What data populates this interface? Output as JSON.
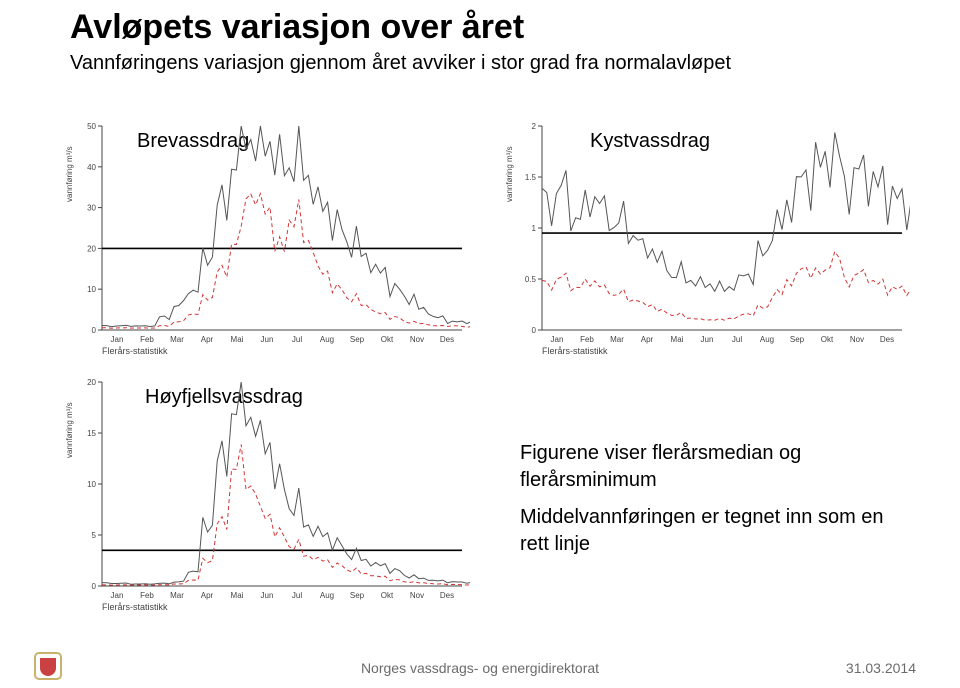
{
  "title": "Avløpets variasjon over året",
  "subtitle": "Vannføringens variasjon gjennom året avviker i stor grad fra normalavløpet",
  "charts": {
    "brevassdrag": {
      "label": "Brevassdrag",
      "y_unit": "vannføring  m³/s",
      "stat_label": "Flerårs-statistikk",
      "ylim": [
        0,
        50
      ],
      "yticks": [
        0,
        10,
        20,
        30,
        40,
        50
      ],
      "mean_line": 20,
      "months": [
        "Jan",
        "Feb",
        "Mar",
        "Apr",
        "Mai",
        "Jun",
        "Jul",
        "Aug",
        "Sep",
        "Okt",
        "Nov",
        "Des"
      ],
      "median": [
        1,
        1,
        1,
        1,
        3,
        6,
        10,
        18,
        30,
        42,
        48,
        46,
        40,
        42,
        38,
        30,
        25,
        22,
        18,
        14,
        10,
        8,
        5,
        3,
        2,
        2
      ],
      "min": [
        0.5,
        0.5,
        0.5,
        0.5,
        1,
        2,
        4,
        8,
        14,
        22,
        34,
        30,
        20,
        28,
        22,
        14,
        10,
        8,
        6,
        4,
        3,
        2,
        1.5,
        1,
        1,
        0.8
      ],
      "colors": {
        "median": "#555555",
        "min": "#d23636",
        "mean": "#000000",
        "axis": "#444444",
        "bg": "#ffffff"
      }
    },
    "kystvassdrag": {
      "label": "Kystvassdrag",
      "y_unit": "vannføring  m³/s",
      "stat_label": "Flerårs-statistikk",
      "ylim": [
        0,
        2.0
      ],
      "yticks": [
        0.0,
        0.5,
        1.0,
        1.5,
        2.0
      ],
      "mean_line": 0.95,
      "months": [
        "Jan",
        "Feb",
        "Mar",
        "Apr",
        "Mai",
        "Jun",
        "Jul",
        "Aug",
        "Sep",
        "Okt",
        "Nov",
        "Des"
      ],
      "median": [
        1.25,
        1.35,
        1.1,
        1.3,
        1.15,
        1.05,
        0.95,
        0.8,
        0.65,
        0.55,
        0.5,
        0.45,
        0.4,
        0.45,
        0.55,
        0.75,
        1.0,
        1.3,
        1.5,
        1.6,
        1.7,
        1.45,
        1.55,
        1.4,
        1.3,
        1.25
      ],
      "min": [
        0.45,
        0.5,
        0.42,
        0.48,
        0.4,
        0.35,
        0.3,
        0.25,
        0.18,
        0.15,
        0.12,
        0.1,
        0.1,
        0.12,
        0.16,
        0.22,
        0.35,
        0.5,
        0.6,
        0.55,
        0.7,
        0.5,
        0.55,
        0.45,
        0.4,
        0.4
      ],
      "colors": {
        "median": "#555555",
        "min": "#d23636",
        "mean": "#000000",
        "axis": "#444444",
        "bg": "#ffffff"
      }
    },
    "hoyfjell": {
      "label": "Høyfjellsvassdrag",
      "y_unit": "vannføring  m³/s",
      "stat_label": "Flerårs-statistikk",
      "ylim": [
        0,
        20
      ],
      "yticks": [
        0,
        5,
        10,
        15,
        20
      ],
      "mean_line": 3.5,
      "months": [
        "Jan",
        "Feb",
        "Mar",
        "Apr",
        "Mai",
        "Jun",
        "Jul",
        "Aug",
        "Sep",
        "Okt",
        "Nov",
        "Des"
      ],
      "median": [
        0.3,
        0.25,
        0.2,
        0.2,
        0.25,
        0.4,
        1.5,
        6,
        12,
        18,
        17,
        14,
        10,
        8,
        6,
        5,
        4,
        3.2,
        2.5,
        2,
        1.5,
        1,
        0.7,
        0.5,
        0.4,
        0.35
      ],
      "min": [
        0.1,
        0.1,
        0.1,
        0.1,
        0.12,
        0.2,
        0.6,
        2.5,
        6,
        12,
        10,
        7,
        5,
        4,
        3,
        2.5,
        2,
        1.6,
        1.2,
        0.9,
        0.6,
        0.4,
        0.3,
        0.2,
        0.15,
        0.12
      ],
      "colors": {
        "median": "#555555",
        "min": "#d23636",
        "mean": "#000000",
        "axis": "#444444",
        "bg": "#ffffff"
      }
    }
  },
  "annotation": {
    "line1": "Figurene viser flerårsmedian og flerårsminimum",
    "line2": "Middelvannføringen er tegnet inn som en rett linje"
  },
  "footer": {
    "org": "Norges vassdrags- og energidirektorat",
    "date": "31.03.2014",
    "logo_colors": {
      "shield": "#c94141",
      "frame": "#c9b26a"
    }
  }
}
